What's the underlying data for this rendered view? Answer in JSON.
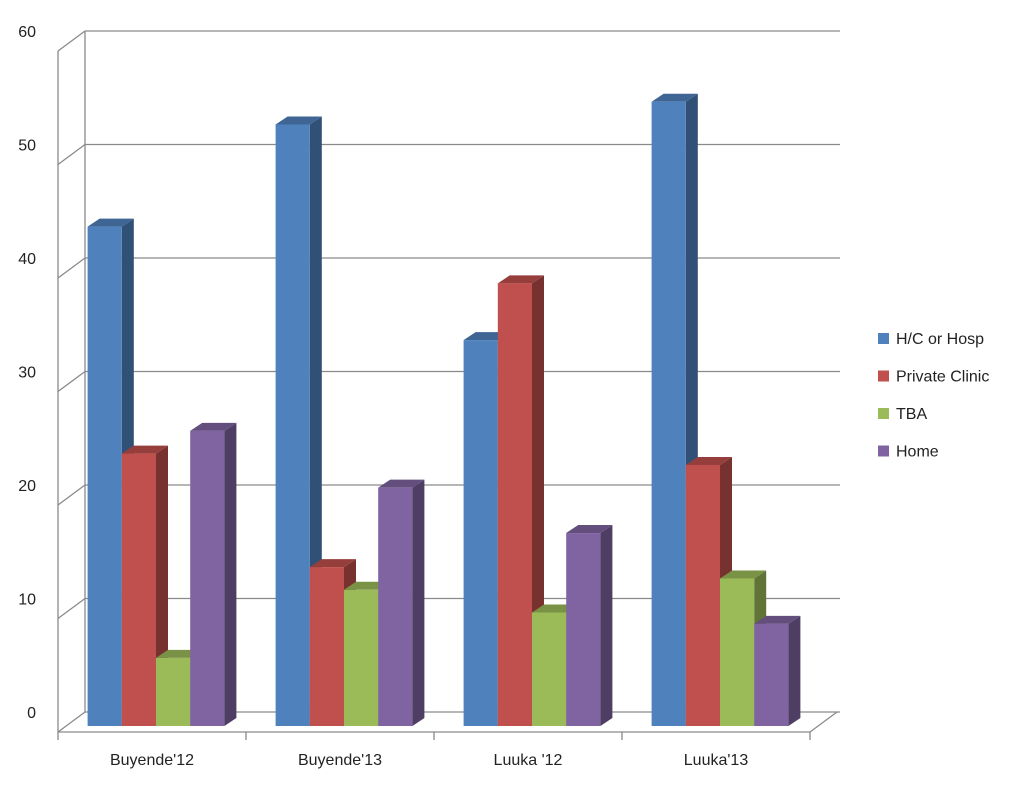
{
  "chart_data": {
    "type": "bar",
    "variant": "3d-clustered-column",
    "title": "",
    "xlabel": "",
    "ylabel": "",
    "categories": [
      "Buyende'12",
      "Buyende'13",
      "Luuka '12",
      "Luuka'13"
    ],
    "series": [
      {
        "name": "H/C or Hosp",
        "values": [
          44,
          53,
          34,
          55
        ],
        "color": "#4F81BD"
      },
      {
        "name": "Private Clinic",
        "values": [
          24,
          14,
          39,
          23
        ],
        "color": "#C0504D"
      },
      {
        "name": "TBA",
        "values": [
          6,
          12,
          10,
          13
        ],
        "color": "#9BBB59"
      },
      {
        "name": "Home",
        "values": [
          26,
          21,
          17,
          9
        ],
        "color": "#8064A2"
      }
    ],
    "yticks": [
      "0",
      "10",
      "20",
      "30",
      "40",
      "50",
      "60"
    ],
    "ylim": [
      0,
      60
    ],
    "grid": true,
    "legend_position": "right"
  }
}
